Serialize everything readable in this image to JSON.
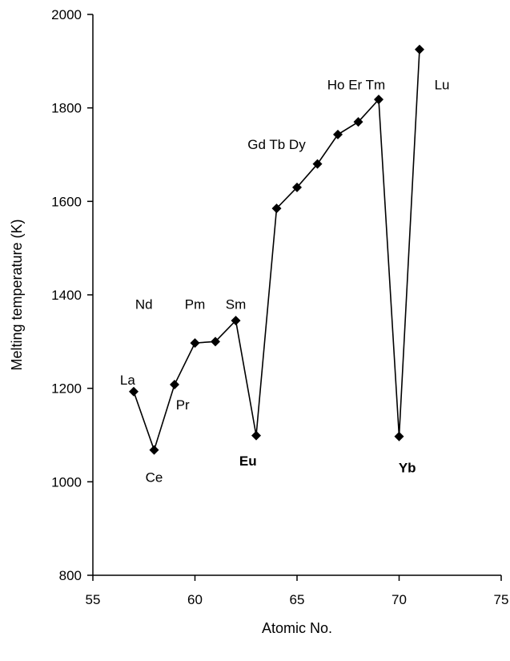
{
  "chart_data": {
    "type": "scatter",
    "xlabel": "Atomic No.",
    "ylabel": "Melting temperature (K)",
    "xlim": [
      55,
      75
    ],
    "ylim": [
      800,
      2000
    ],
    "xticks": [
      55,
      60,
      65,
      70,
      75
    ],
    "yticks": [
      800,
      1000,
      1200,
      1400,
      1600,
      1800,
      2000
    ],
    "grid": false,
    "marker": "diamond",
    "line_color": "#000000",
    "marker_color": "#000000",
    "points": [
      {
        "x": 57,
        "y": 1193
      },
      {
        "x": 58,
        "y": 1068
      },
      {
        "x": 59,
        "y": 1208
      },
      {
        "x": 60,
        "y": 1297
      },
      {
        "x": 61,
        "y": 1300
      },
      {
        "x": 62,
        "y": 1345
      },
      {
        "x": 63,
        "y": 1099
      },
      {
        "x": 64,
        "y": 1585
      },
      {
        "x": 65,
        "y": 1630
      },
      {
        "x": 66,
        "y": 1680
      },
      {
        "x": 67,
        "y": 1743
      },
      {
        "x": 68,
        "y": 1770
      },
      {
        "x": 69,
        "y": 1818
      },
      {
        "x": 70,
        "y": 1097
      },
      {
        "x": 71,
        "y": 1925
      }
    ],
    "annotations": [
      {
        "text": "La",
        "x": 56.7,
        "y": 1208,
        "bold": false
      },
      {
        "text": "Ce",
        "x": 58.0,
        "y": 1000,
        "bold": false
      },
      {
        "text": "Pr",
        "x": 59.4,
        "y": 1155,
        "bold": false
      },
      {
        "text": "Nd",
        "x": 57.5,
        "y": 1370,
        "bold": false
      },
      {
        "text": "Pm",
        "x": 60.0,
        "y": 1370,
        "bold": false
      },
      {
        "text": "Sm",
        "x": 62.0,
        "y": 1370,
        "bold": false
      },
      {
        "text": "Eu",
        "x": 62.6,
        "y": 1035,
        "bold": true
      },
      {
        "text": "Gd Tb Dy",
        "x": 64.0,
        "y": 1712,
        "bold": false
      },
      {
        "text": "Ho Er Tm",
        "x": 67.9,
        "y": 1840,
        "bold": false
      },
      {
        "text": "Yb",
        "x": 70.4,
        "y": 1020,
        "bold": true
      },
      {
        "text": "Lu",
        "x": 72.1,
        "y": 1840,
        "bold": false
      }
    ]
  }
}
